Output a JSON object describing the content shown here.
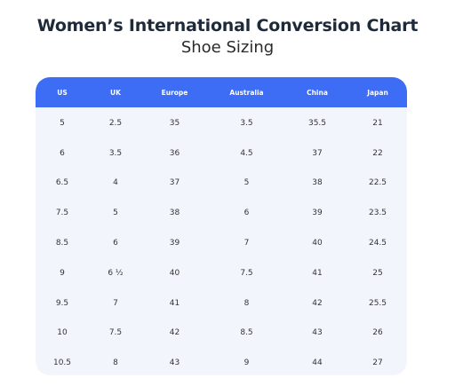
{
  "title": "Women’s International Conversion Chart",
  "subtitle": "Shoe Sizing",
  "table": {
    "headers": [
      "US",
      "UK",
      "Europe",
      "Australia",
      "China",
      "Japan"
    ],
    "rows": [
      [
        "5",
        "2.5",
        "35",
        "3.5",
        "35.5",
        "21"
      ],
      [
        "6",
        "3.5",
        "36",
        "4.5",
        "37",
        "22"
      ],
      [
        "6.5",
        "4",
        "37",
        "5",
        "38",
        "22.5"
      ],
      [
        "7.5",
        "5",
        "38",
        "6",
        "39",
        "23.5"
      ],
      [
        "8.5",
        "6",
        "39",
        "7",
        "40",
        "24.5"
      ],
      [
        "9",
        "6 ½",
        "40",
        "7.5",
        "41",
        "25"
      ],
      [
        "9.5",
        "7",
        "41",
        "8",
        "42",
        "25.5"
      ],
      [
        "10",
        "7.5",
        "42",
        "8.5",
        "43",
        "26"
      ],
      [
        "10.5",
        "8",
        "43",
        "9",
        "44",
        "27"
      ]
    ]
  },
  "colors": {
    "header_background": "#3d6cf5",
    "body_background": "#f2f6fc",
    "title_text": "#1e2a3a"
  }
}
